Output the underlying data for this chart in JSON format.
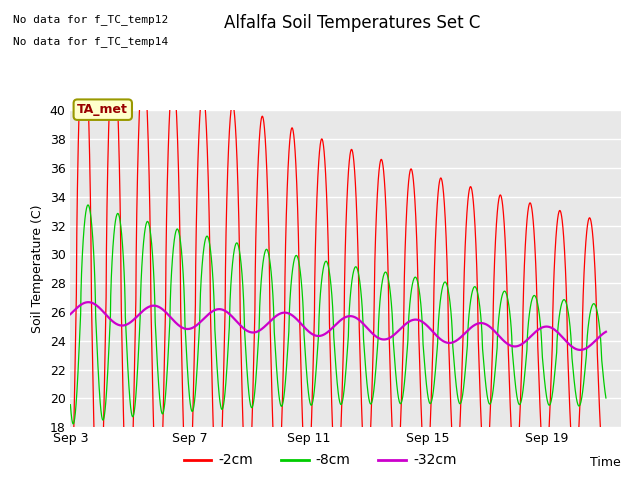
{
  "title": "Alfalfa Soil Temperatures Set C",
  "ylabel": "Soil Temperature (C)",
  "xlabel": "Time",
  "no_data_lines": [
    "No data for f_TC_temp12",
    "No data for f_TC_temp14"
  ],
  "ta_met_label": "TA_met",
  "ylim": [
    18,
    40
  ],
  "yticks": [
    18,
    20,
    22,
    24,
    26,
    28,
    30,
    32,
    34,
    36,
    38,
    40
  ],
  "xtick_days": [
    0,
    4,
    8,
    12,
    16
  ],
  "xtick_labels": [
    "Sep 3",
    "Sep 7",
    "Sep 11",
    "Sep 15",
    "Sep 19"
  ],
  "xlim": [
    0,
    18.5
  ],
  "bg_color": "#e8e8e8",
  "line_2cm_color": "#ff0000",
  "line_8cm_color": "#00cc00",
  "line_32cm_color": "#cc00cc",
  "legend_labels": [
    "-2cm",
    "-8cm",
    "-32cm"
  ],
  "legend_colors": [
    "#ff0000",
    "#00cc00",
    "#cc00cc"
  ],
  "title_fontsize": 12,
  "axis_fontsize": 9
}
